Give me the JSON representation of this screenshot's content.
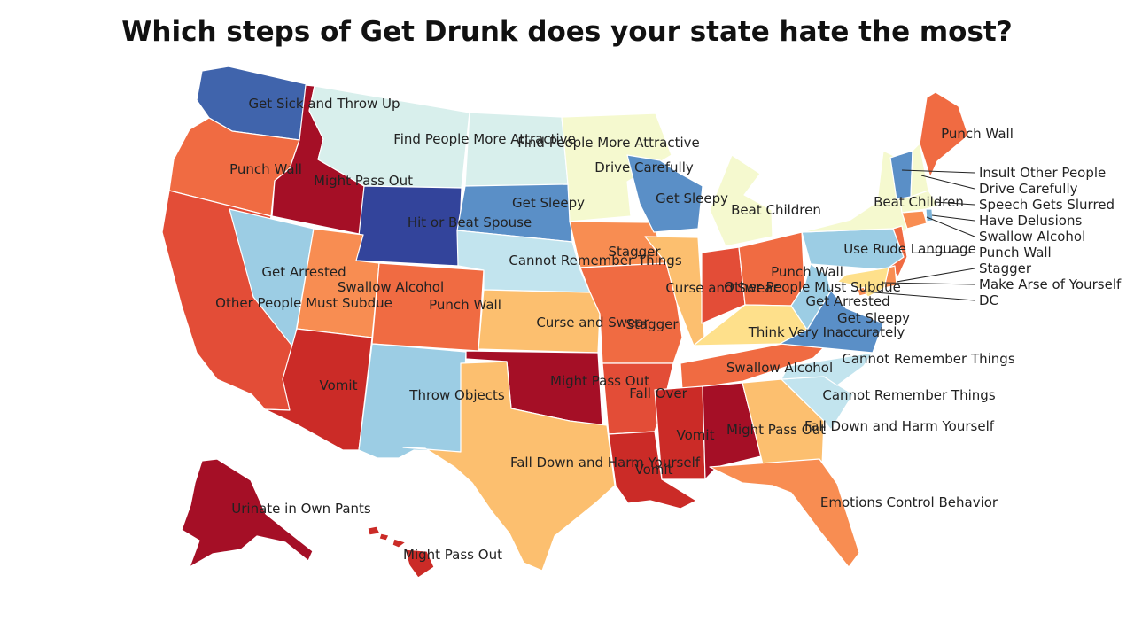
{
  "title": "Which steps of Get Drunk does your state hate the most?",
  "colors": {
    "c1": "#a50f26",
    "c2": "#cb2b27",
    "c3": "#e34d37",
    "c4": "#f06b42",
    "c5": "#f88d52",
    "c6": "#fcbf6f",
    "c7": "#fee08b",
    "c8": "#f5f9cf",
    "c9": "#d8efec",
    "c10": "#c2e4ee",
    "c11": "#9ccde4",
    "c12": "#7bb3d8",
    "c13": "#5a8fc7",
    "c14": "#4064ac",
    "c15": "#33449b"
  },
  "states": [
    {
      "id": "WA",
      "color": "c14",
      "label": "Get Sick and Throw Up"
    },
    {
      "id": "OR",
      "color": "c4",
      "label": "Punch Wall"
    },
    {
      "id": "CA",
      "color": "c3",
      "label": "Other People Must Subdue"
    },
    {
      "id": "ID",
      "color": "c1",
      "label": "Might Pass Out"
    },
    {
      "id": "NV",
      "color": "c11",
      "label": "Get Arrested"
    },
    {
      "id": "MT",
      "color": "c9",
      "label": "Find People More Attractive"
    },
    {
      "id": "WY",
      "color": "c15",
      "label": "Hit or Beat Spouse"
    },
    {
      "id": "UT",
      "color": "c5",
      "label": "Swallow Alcohol"
    },
    {
      "id": "AZ",
      "color": "c2",
      "label": "Vomit"
    },
    {
      "id": "CO",
      "color": "c4",
      "label": "Punch Wall"
    },
    {
      "id": "NM",
      "color": "c11",
      "label": "Throw Objects"
    },
    {
      "id": "ND",
      "color": "c9",
      "label": "Find People More Attractive"
    },
    {
      "id": "SD",
      "color": "c13",
      "label": "Get Sleepy"
    },
    {
      "id": "NE",
      "color": "c10",
      "label": "Cannot Remember Things"
    },
    {
      "id": "KS",
      "color": "c6",
      "label": "Curse and Swear"
    },
    {
      "id": "OK",
      "color": "c1",
      "label": "Might Pass Out"
    },
    {
      "id": "TX",
      "color": "c6",
      "label": "Fall Down and Harm Yourself"
    },
    {
      "id": "MN",
      "color": "c8",
      "label": "Drive Carefully"
    },
    {
      "id": "IA",
      "color": "c5",
      "label": "Stagger"
    },
    {
      "id": "MO",
      "color": "c4",
      "label": "Stagger"
    },
    {
      "id": "AR",
      "color": "c3",
      "label": "Fall Over"
    },
    {
      "id": "LA",
      "color": "c2",
      "label": "Vomit"
    },
    {
      "id": "WI",
      "color": "c13",
      "label": "Get Sleepy"
    },
    {
      "id": "IL",
      "color": "c6",
      "label": "Curse and Swear"
    },
    {
      "id": "MI",
      "color": "c8",
      "label": "Beat Children"
    },
    {
      "id": "IN",
      "color": "c3",
      "label": "Punch Wall"
    },
    {
      "id": "OH",
      "color": "c4",
      "label": "Other People Must Subdue"
    },
    {
      "id": "KY",
      "color": "c7",
      "label": "Think Very Inaccurately"
    },
    {
      "id": "TN",
      "color": "c4",
      "label": "Swallow Alcohol"
    },
    {
      "id": "MS",
      "color": "c2",
      "label": "Vomit"
    },
    {
      "id": "AL",
      "color": "c1",
      "label": "Might Pass Out"
    },
    {
      "id": "GA",
      "color": "c6",
      "label": "Fall Down and Harm Yourself"
    },
    {
      "id": "FL",
      "color": "c5",
      "label": "Emotions Control Behavior"
    },
    {
      "id": "SC",
      "color": "c10",
      "label": "Cannot Remember Things"
    },
    {
      "id": "NC",
      "color": "c10",
      "label": "Cannot Remember Things"
    },
    {
      "id": "VA",
      "color": "c13",
      "label": "Get Sleepy"
    },
    {
      "id": "WV",
      "color": "c11",
      "label": "Get Arrested"
    },
    {
      "id": "PA",
      "color": "c11",
      "label": "Use Rude Language"
    },
    {
      "id": "NY",
      "color": "c8",
      "label": "Beat Children"
    },
    {
      "id": "NJ",
      "color": "c4",
      "label": "Punch Wall"
    },
    {
      "id": "DE",
      "color": "c5",
      "label": "Stagger"
    },
    {
      "id": "MD",
      "color": "c7",
      "label": "Make Arse of Yourself"
    },
    {
      "id": "DC",
      "color": "c5",
      "label": "DC"
    },
    {
      "id": "CT",
      "color": "c5",
      "label": "Swallow Alcohol"
    },
    {
      "id": "RI",
      "color": "c12",
      "label": "Have Delusions"
    },
    {
      "id": "MA",
      "color": "c8",
      "label": "Speech Gets Slurred"
    },
    {
      "id": "VT",
      "color": "c13",
      "label": "Insult Other People"
    },
    {
      "id": "NH",
      "color": "c8",
      "label": "Drive Carefully"
    },
    {
      "id": "ME",
      "color": "c4",
      "label": "Punch Wall"
    },
    {
      "id": "AK",
      "color": "c1",
      "label": "Urinate in Own Pants"
    },
    {
      "id": "HI",
      "color": "c2",
      "label": "Might Pass Out"
    }
  ],
  "extra_labels": [
    {
      "id": "ND-dup",
      "label": "Find People More Attractive"
    }
  ]
}
